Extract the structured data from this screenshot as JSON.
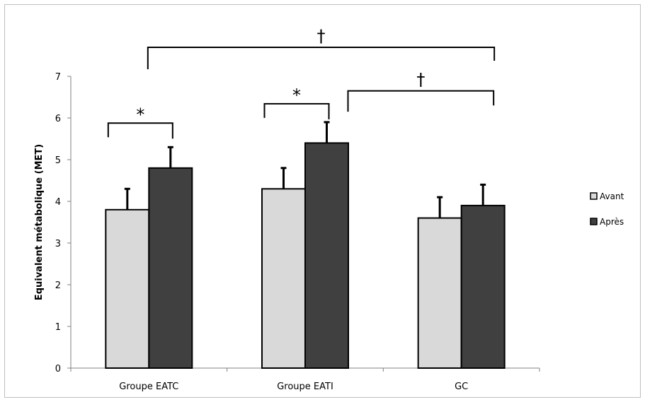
{
  "chart_data": {
    "type": "bar",
    "ylabel": "Equivalent métabolique (MET)",
    "xlabel": "",
    "ylim": [
      0,
      7
    ],
    "yticks": [
      0,
      1,
      2,
      3,
      4,
      5,
      6,
      7
    ],
    "categories": [
      "Groupe EATC",
      "Groupe EATI",
      "GC"
    ],
    "series": [
      {
        "name": "Avant",
        "values": [
          3.8,
          4.3,
          3.6
        ],
        "error": [
          0.5,
          0.5,
          0.5
        ],
        "color": "#d9d9d9"
      },
      {
        "name": "Après",
        "values": [
          4.8,
          5.4,
          3.9
        ],
        "error": [
          0.5,
          0.5,
          0.5
        ],
        "color": "#404040"
      }
    ],
    "legend_position": "right",
    "annotations": [
      {
        "symbol": "*",
        "label": "Avant vs Après, Groupe EATC"
      },
      {
        "symbol": "*",
        "label": "Avant vs Après, Groupe EATI"
      },
      {
        "symbol": "†",
        "label": "Groupe EATI Après vs GC"
      },
      {
        "symbol": "†",
        "label": "Groupe EATC Avant vs GC"
      }
    ]
  }
}
